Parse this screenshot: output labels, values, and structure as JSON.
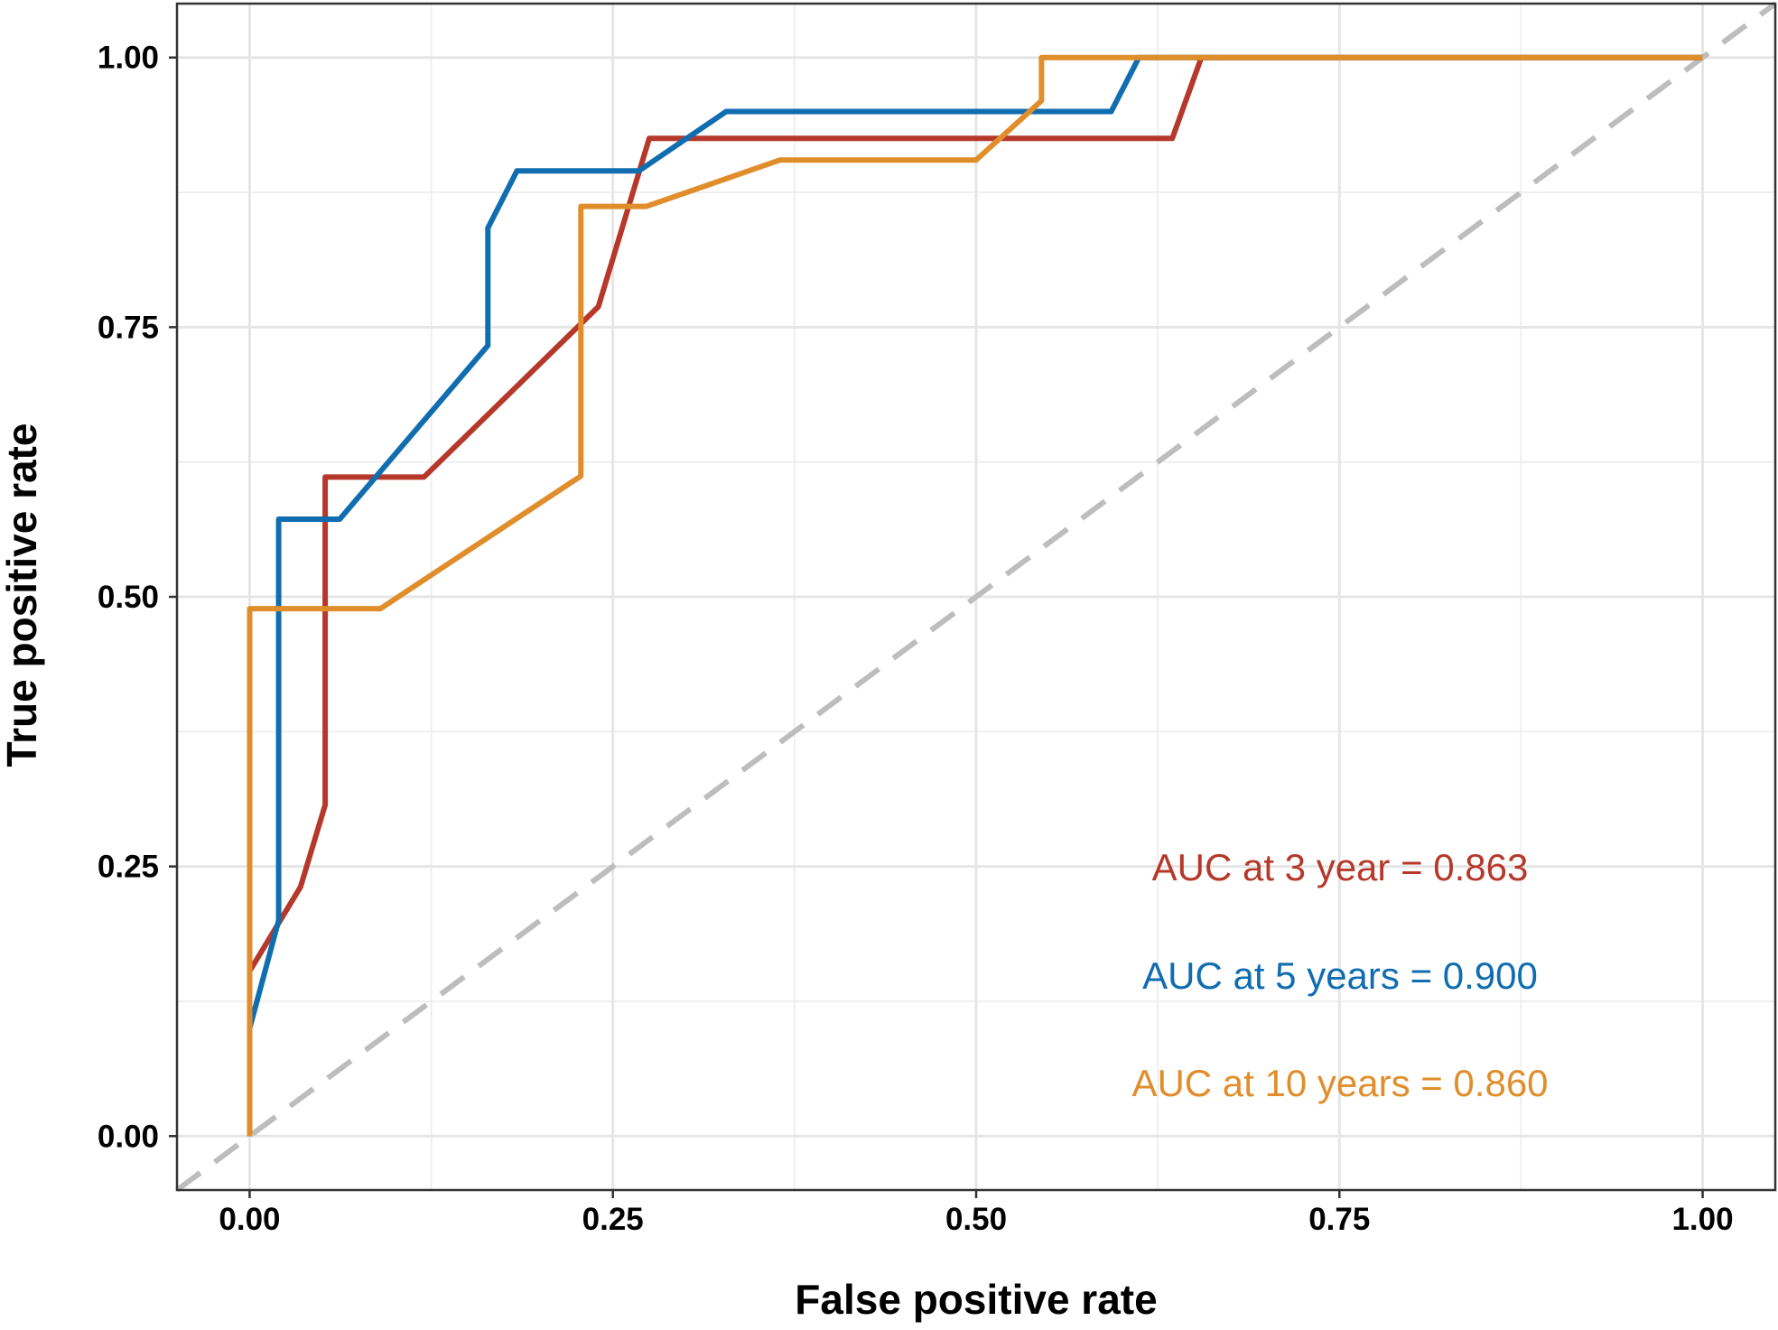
{
  "chart_data": {
    "type": "line",
    "title": "",
    "xlabel": "False positive rate",
    "ylabel": "True positive rate",
    "xlim": [
      -0.05,
      1.05
    ],
    "ylim": [
      -0.05,
      1.05
    ],
    "x_ticks": [
      0,
      0.25,
      0.5,
      0.75,
      1
    ],
    "x_tick_labels": [
      "0.00",
      "0.25",
      "0.50",
      "0.75",
      "1.00"
    ],
    "y_ticks": [
      0,
      0.25,
      0.5,
      0.75,
      1
    ],
    "y_tick_labels": [
      "0.00",
      "0.25",
      "0.50",
      "0.75",
      "1.00"
    ],
    "grid": true,
    "reference_line": {
      "x": [
        -0.05,
        1.05
      ],
      "y": [
        -0.05,
        1.05
      ],
      "color": "#bdbdbd",
      "style": "dashed"
    },
    "series": [
      {
        "name": "AUC at 3 year = 0.863",
        "color": "#b5382a",
        "x": [
          0,
          0,
          0.035,
          0.052,
          0.052,
          0.12,
          0.24,
          0.275,
          0.275,
          0.635,
          0.655,
          1.0
        ],
        "y": [
          0,
          0.153,
          0.231,
          0.307,
          0.611,
          0.611,
          0.769,
          0.925,
          0.925,
          0.925,
          1.0,
          1.0
        ]
      },
      {
        "name": "AUC at 5 years = 0.900",
        "color": "#0f6db0",
        "x": [
          0,
          0,
          0.02,
          0.02,
          0.062,
          0.164,
          0.164,
          0.184,
          0.268,
          0.328,
          0.593,
          0.612,
          1.0
        ],
        "y": [
          0,
          0.1,
          0.2,
          0.572,
          0.572,
          0.733,
          0.842,
          0.895,
          0.895,
          0.95,
          0.95,
          1.0,
          1.0
        ]
      },
      {
        "name": "AUC at 10 years = 0.860",
        "color": "#e08e2b",
        "x": [
          0,
          0,
          0.09,
          0.228,
          0.228,
          0.273,
          0.365,
          0.5,
          0.545,
          0.545,
          1.0
        ],
        "y": [
          0,
          0.489,
          0.489,
          0.612,
          0.862,
          0.862,
          0.905,
          0.905,
          0.96,
          1.0,
          1.0
        ]
      }
    ],
    "annotations": [
      {
        "text": "AUC at 3 year = 0.863",
        "color": "#b5382a"
      },
      {
        "text": "AUC at 5 years = 0.900",
        "color": "#0f6db0"
      },
      {
        "text": "AUC at 10 years = 0.860",
        "color": "#e08e2b"
      }
    ]
  }
}
